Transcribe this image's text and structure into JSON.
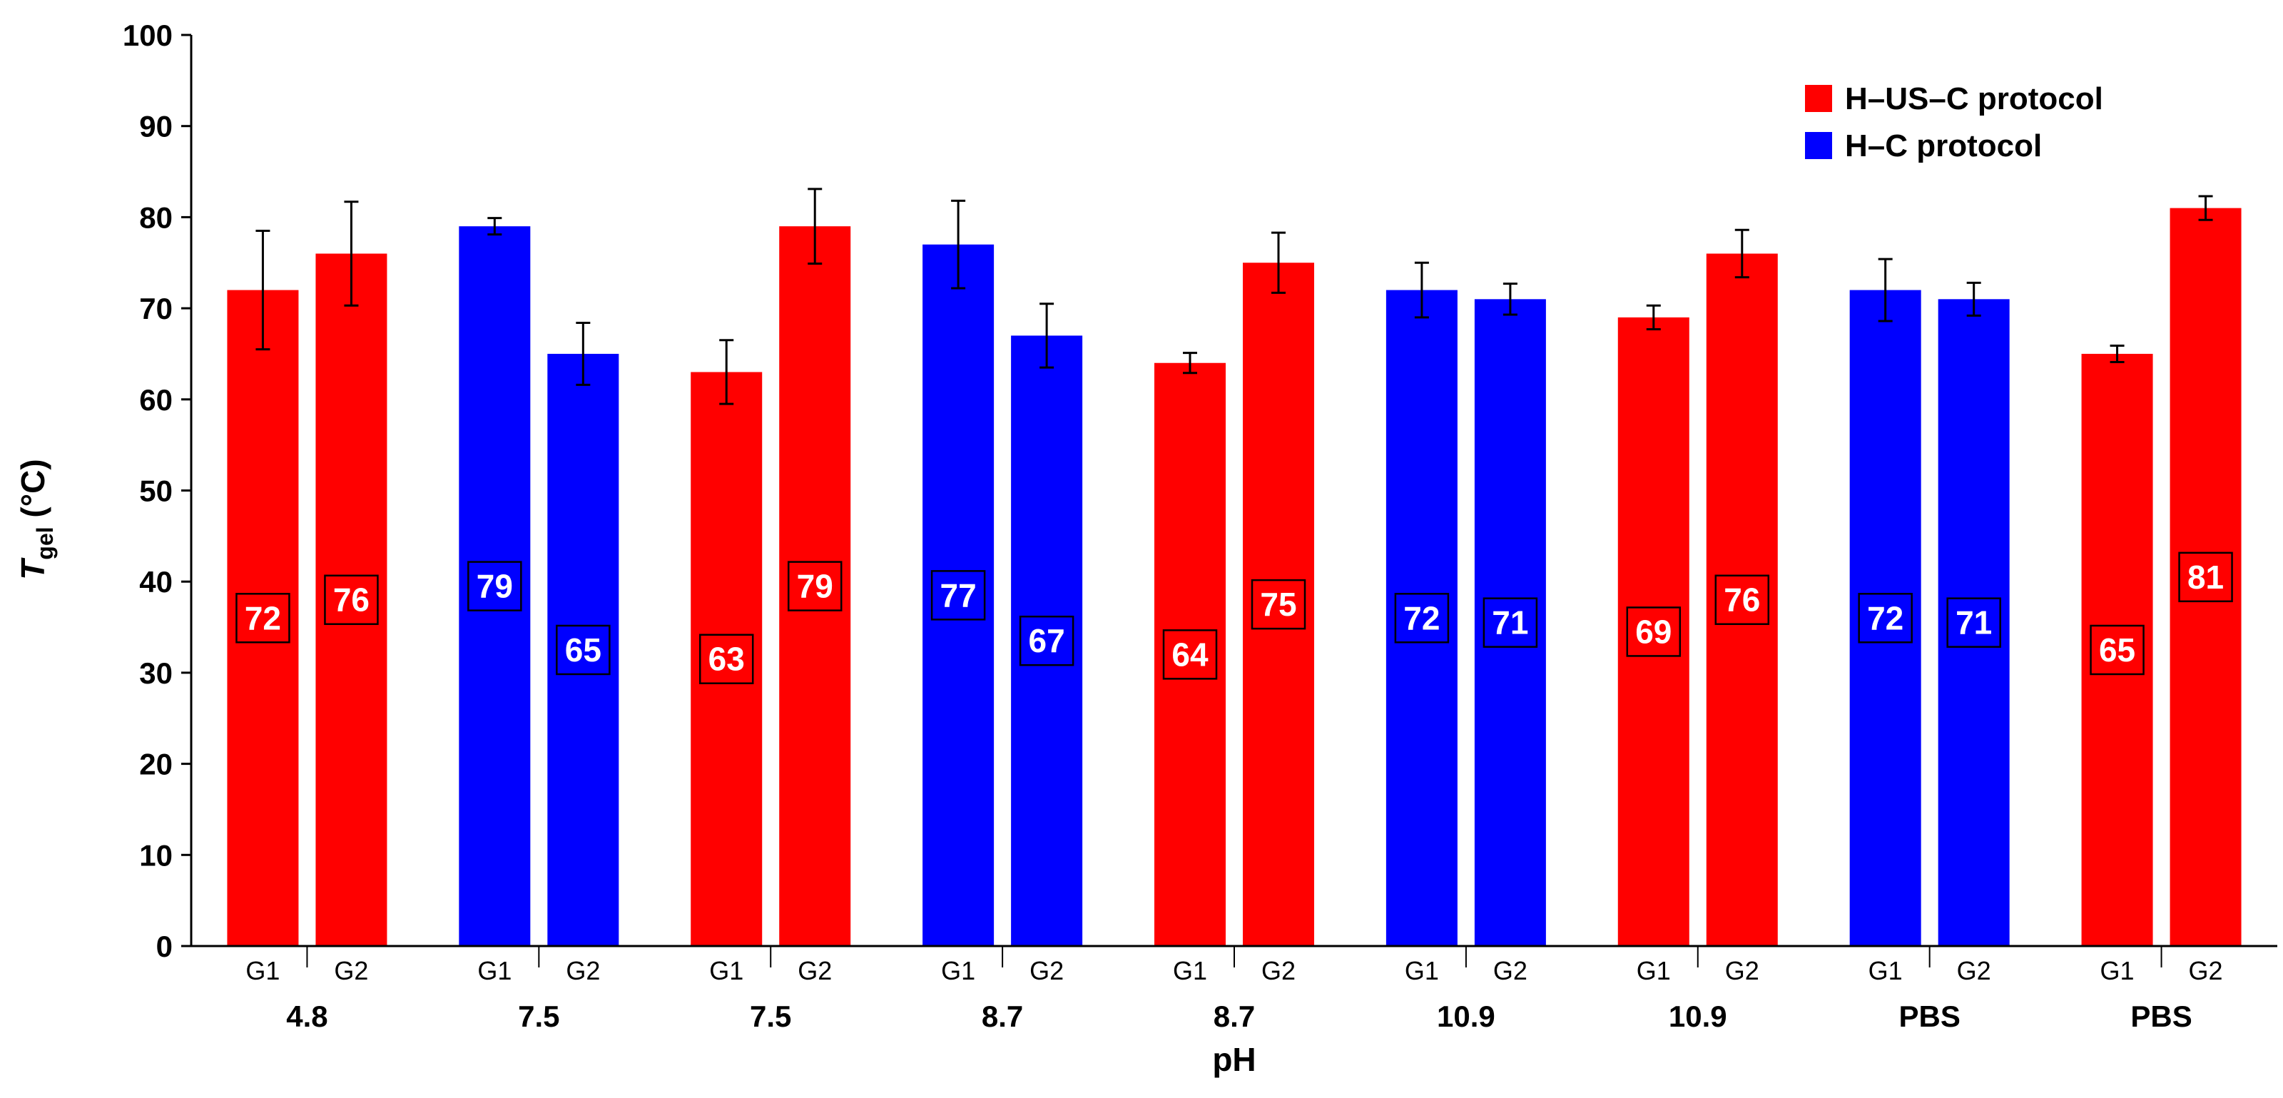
{
  "chart_data": {
    "type": "bar",
    "title": "",
    "ylabel": {
      "main": "T",
      "sub": "gel",
      "suffix": " (°C)"
    },
    "xlabel": "pH",
    "ylim": [
      0,
      100
    ],
    "yticks": [
      0,
      10,
      20,
      30,
      40,
      50,
      60,
      70,
      80,
      90,
      100
    ],
    "grid": false,
    "legend_position": "top-right",
    "legend": [
      {
        "label": "H–US–C protocol",
        "protocol": "H-US-C",
        "color": "#FF0000"
      },
      {
        "label": "H–C protocol",
        "protocol": "H-C",
        "color": "#0000FF"
      }
    ],
    "colors": {
      "H-US-C": "#FF0000",
      "H-C": "#0000FF"
    },
    "groups": [
      {
        "label": "4.8",
        "protocol": "H-US-C",
        "bars": [
          {
            "sub": "G1",
            "value": 72,
            "error": 6.5
          },
          {
            "sub": "G2",
            "value": 76,
            "error": 5.7
          }
        ]
      },
      {
        "label": "7.5",
        "protocol": "H-C",
        "bars": [
          {
            "sub": "G1",
            "value": 79,
            "error": 0.9
          },
          {
            "sub": "G2",
            "value": 65,
            "error": 3.4
          }
        ]
      },
      {
        "label": "7.5",
        "protocol": "H-US-C",
        "bars": [
          {
            "sub": "G1",
            "value": 63,
            "error": 3.5
          },
          {
            "sub": "G2",
            "value": 79,
            "error": 4.1
          }
        ]
      },
      {
        "label": "8.7",
        "protocol": "H-C",
        "bars": [
          {
            "sub": "G1",
            "value": 77,
            "error": 4.8
          },
          {
            "sub": "G2",
            "value": 67,
            "error": 3.5
          }
        ]
      },
      {
        "label": "8.7",
        "protocol": "H-US-C",
        "bars": [
          {
            "sub": "G1",
            "value": 64,
            "error": 1.1
          },
          {
            "sub": "G2",
            "value": 75,
            "error": 3.3
          }
        ]
      },
      {
        "label": "10.9",
        "protocol": "H-C",
        "bars": [
          {
            "sub": "G1",
            "value": 72,
            "error": 3.0
          },
          {
            "sub": "G2",
            "value": 71,
            "error": 1.7
          }
        ]
      },
      {
        "label": "10.9",
        "protocol": "H-US-C",
        "bars": [
          {
            "sub": "G1",
            "value": 69,
            "error": 1.3
          },
          {
            "sub": "G2",
            "value": 76,
            "error": 2.6
          }
        ]
      },
      {
        "label": "PBS",
        "protocol": "H-C",
        "bars": [
          {
            "sub": "G1",
            "value": 72,
            "error": 3.4
          },
          {
            "sub": "G2",
            "value": 71,
            "error": 1.8
          }
        ]
      },
      {
        "label": "PBS",
        "protocol": "H-US-C",
        "bars": [
          {
            "sub": "G1",
            "value": 65,
            "error": 0.9
          },
          {
            "sub": "G2",
            "value": 81,
            "error": 1.3
          }
        ]
      }
    ]
  }
}
